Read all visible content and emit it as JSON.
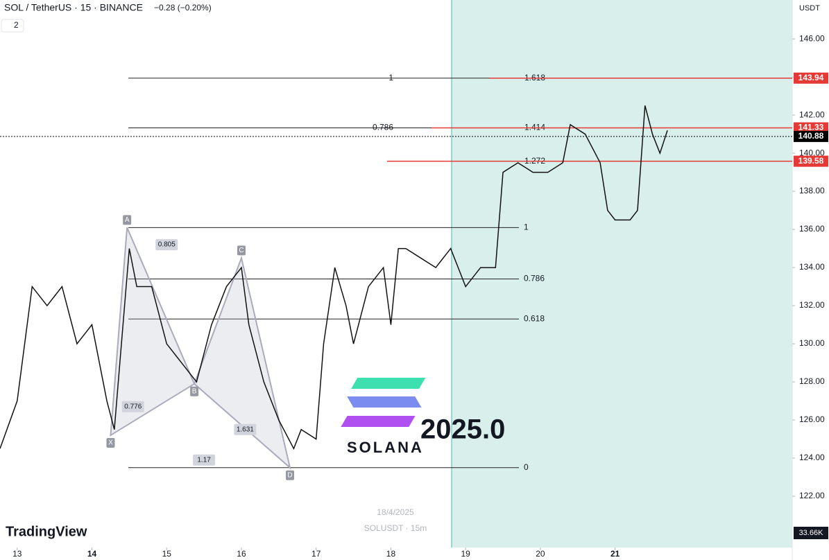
{
  "chart_data": {
    "type": "line",
    "title": "SOL / TetherUS · 15 · BINANCE",
    "subtitle": "−0.28 (−0.20%)",
    "indicator_count": "2",
    "y_axis_label": "USDT",
    "volume_label": "33.66K",
    "watermark_date": "18/4/2025",
    "watermark_symbol": "SOLUSDT · 15m",
    "logo_text": "SOLANA",
    "logo_year": "2025.0",
    "brand": "TradingView",
    "color": "#111111",
    "x": [
      12.77,
      13.0,
      13.2,
      13.4,
      13.6,
      13.8,
      14.0,
      14.2,
      14.3,
      14.5,
      14.6,
      14.8,
      15.0,
      15.2,
      15.4,
      15.6,
      15.8,
      16.0,
      16.1,
      16.3,
      16.5,
      16.7,
      16.8,
      17.0,
      17.1,
      17.25,
      17.4,
      17.5,
      17.7,
      17.9,
      18.0,
      18.1,
      18.2,
      18.4,
      18.6,
      18.8,
      19.0,
      19.2,
      19.4,
      19.5,
      19.7,
      19.9,
      20.1,
      20.3,
      20.4,
      20.6,
      20.8,
      20.9,
      21.0,
      21.2,
      21.3,
      21.4,
      21.5,
      21.6,
      21.7
    ],
    "values": [
      124.5,
      127,
      133,
      132,
      133,
      130,
      131,
      127,
      125.5,
      135,
      133,
      133,
      130,
      129,
      128,
      131,
      133,
      134,
      131,
      128,
      126,
      124.5,
      125.5,
      125,
      130,
      134,
      132,
      130,
      133,
      134,
      131,
      135,
      135,
      134.5,
      134,
      135,
      133,
      134,
      134,
      139,
      139.5,
      139,
      139,
      139.5,
      141.5,
      141,
      139.5,
      137,
      136.5,
      136.5,
      137,
      142.5,
      141,
      140,
      141.2
    ],
    "xlim": [
      12.77,
      23.37
    ],
    "xticks": [
      13,
      14,
      15,
      16,
      17,
      18,
      19,
      20,
      21
    ],
    "ylim": [
      119.31,
      148.04
    ],
    "yticks": [
      {
        "value": 122,
        "label": "122.00"
      },
      {
        "value": 124,
        "label": "124.00"
      },
      {
        "value": 126,
        "label": "126.00"
      },
      {
        "value": 128,
        "label": "128.00"
      },
      {
        "value": 130,
        "label": "130.00"
      },
      {
        "value": 132,
        "label": "132.00"
      },
      {
        "value": 134,
        "label": "134.00"
      },
      {
        "value": 136,
        "label": "136.00"
      },
      {
        "value": 138,
        "label": "138.00"
      },
      {
        "value": 140,
        "label": "140.00"
      },
      {
        "value": 142,
        "label": "142.00"
      },
      {
        "value": 144,
        "label": "144.00"
      },
      {
        "value": 146,
        "label": "146.00"
      }
    ],
    "price_levels": [
      {
        "value": 143.94,
        "color": "#e53935"
      },
      {
        "value": 141.33,
        "color": "#e53935"
      },
      {
        "value": 140.88,
        "color": "#000000"
      },
      {
        "value": 139.58,
        "color": "#e53935"
      }
    ],
    "pattern_points": [
      {
        "label": "X",
        "x": 14.25,
        "y": 125.2
      },
      {
        "label": "A",
        "x": 14.47,
        "y": 136.1
      },
      {
        "label": "B",
        "x": 15.37,
        "y": 127.9
      },
      {
        "label": "C",
        "x": 16.0,
        "y": 134.5
      },
      {
        "label": "D",
        "x": 16.65,
        "y": 123.5
      }
    ],
    "pattern_ratios": [
      {
        "label": "0.805",
        "x": 15.0,
        "y": 135.2
      },
      {
        "label": "0.776",
        "x": 14.55,
        "y": 126.7
      },
      {
        "label": "1.631",
        "x": 16.05,
        "y": 125.5
      },
      {
        "label": "1.17",
        "x": 15.5,
        "y": 123.9
      }
    ],
    "fib_levels": [
      {
        "label": 1,
        "y": 136.1,
        "side": "right"
      },
      {
        "label": 0.786,
        "y": 133.4,
        "side": "right"
      },
      {
        "label": 0.618,
        "y": 131.3,
        "side": "right"
      },
      {
        "label": 0,
        "y": 123.5,
        "side": "right"
      },
      {
        "label": 1,
        "y": 143.94,
        "side": "left"
      },
      {
        "label": 1.618,
        "y": 143.94,
        "side": "mid"
      },
      {
        "label": 0.786,
        "y": 141.33,
        "side": "left"
      },
      {
        "label": 1.414,
        "y": 141.33,
        "side": "mid"
      },
      {
        "label": 1.272,
        "y": 139.58,
        "side": "mid"
      }
    ]
  }
}
